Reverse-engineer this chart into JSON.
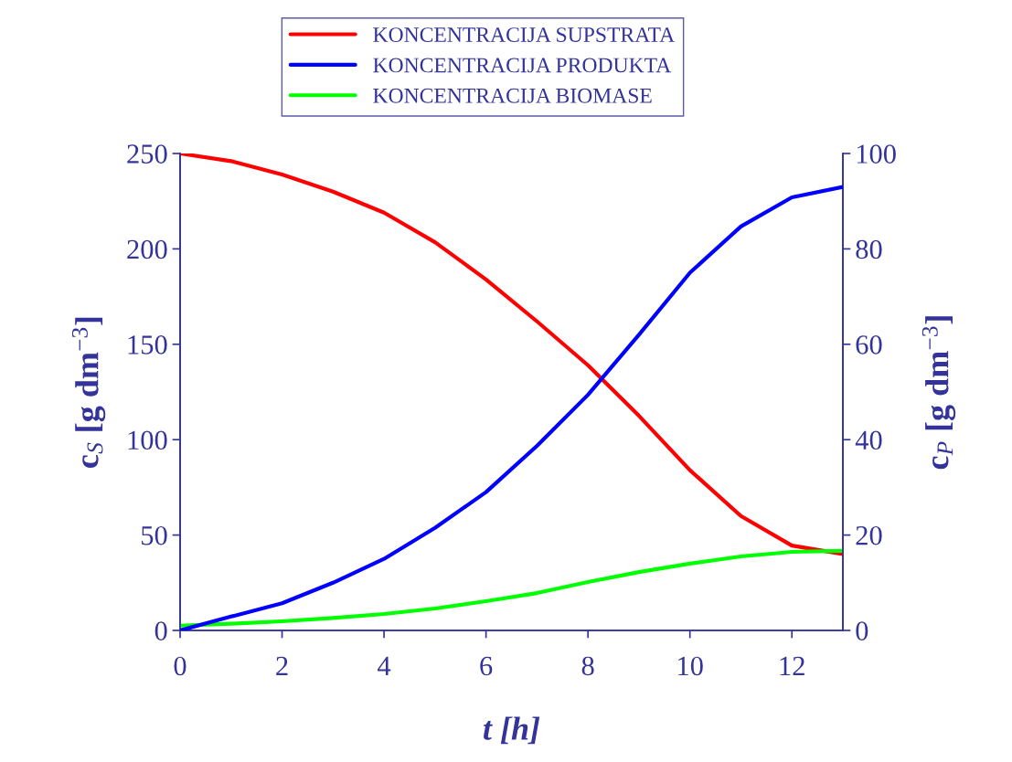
{
  "chart_data": {
    "type": "line",
    "xlabel": "t [h]",
    "ylabel": "c$_{S}$ [g dm$^{−3}$]",
    "y2label": "c$_{P}$ [g dm$^{−3}$]",
    "x": [
      0,
      1,
      2,
      3,
      4,
      5,
      6,
      7,
      8,
      9,
      10,
      11,
      12,
      13
    ],
    "series": [
      {
        "name": "KONCENTRACIJA SUPSTRATA",
        "color": "#ff0000",
        "values": [
          250,
          246,
          239,
          230,
          219,
          203.5,
          184,
          162,
          139,
          112.5,
          84,
          60,
          44.5,
          40
        ]
      },
      {
        "name": "KONCENTRACIJA PRODUKTA",
        "color": "#0000ff",
        "axis": "y2",
        "values": [
          0,
          2.9,
          5.7,
          10,
          15,
          21.5,
          29,
          38.7,
          49.4,
          62,
          75,
          84.7,
          90.8,
          93
        ]
      },
      {
        "name": "KONCENTRACIJA BIOMASE",
        "color": "#00ff00",
        "values": [
          2.5,
          3.5,
          4.8,
          6.5,
          8.6,
          11.5,
          15.3,
          19.6,
          25.4,
          30.6,
          35,
          38.8,
          41.2,
          41.7
        ]
      }
    ],
    "xlim": [
      0,
      13
    ],
    "xticks": [
      0,
      2,
      4,
      6,
      8,
      10,
      12
    ],
    "ylim": [
      0,
      250
    ],
    "yticks": [
      0,
      50,
      100,
      150,
      200,
      250
    ],
    "y2lim": [
      0,
      100
    ],
    "y2ticks": [
      0,
      20,
      40,
      60,
      80,
      100
    ],
    "legend": "top",
    "grid": false
  }
}
